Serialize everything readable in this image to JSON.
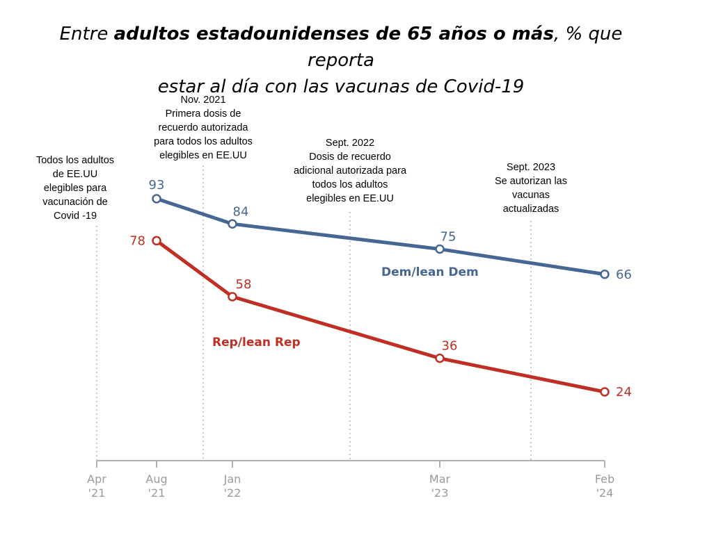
{
  "title": {
    "pre": "Entre ",
    "bold": "adultos estadounidenses de 65 años o más",
    "post": ", % que reporta",
    "line2": "estar al día con las vacunas de Covid-19"
  },
  "colors": {
    "dem": "#466694",
    "rep": "#bf2f24",
    "axis": "#b0b0b0",
    "event_line": "#b8b8b8"
  },
  "chart_data": {
    "type": "line",
    "x": [
      "Apr '21",
      "Aug '21",
      "Jan '22",
      "Mar '23",
      "Feb '24"
    ],
    "x_dates": [
      "2021-04",
      "2021-08",
      "2022-01",
      "2023-03",
      "2024-02"
    ],
    "ylim": [
      0,
      100
    ],
    "grid": false,
    "legend": "inline labels",
    "series": [
      {
        "name": "Dem/lean Dem",
        "color": "#466694",
        "points": [
          {
            "x": "2021-08",
            "y": 93
          },
          {
            "x": "2022-01",
            "y": 84
          },
          {
            "x": "2023-03",
            "y": 75
          },
          {
            "x": "2024-02",
            "y": 66
          }
        ]
      },
      {
        "name": "Rep/lean Rep",
        "color": "#bf2f24",
        "points": [
          {
            "x": "2021-08",
            "y": 78
          },
          {
            "x": "2022-01",
            "y": 58
          },
          {
            "x": "2023-03",
            "y": 36
          },
          {
            "x": "2024-02",
            "y": 24
          }
        ]
      }
    ],
    "x_ticks": [
      {
        "date": "2021-04",
        "line1": "Apr",
        "line2": "'21"
      },
      {
        "date": "2021-08",
        "line1": "Aug",
        "line2": "'21"
      },
      {
        "date": "2022-01",
        "line1": "Jan",
        "line2": "'22"
      },
      {
        "date": "2023-03",
        "line1": "Mar",
        "line2": "'23"
      },
      {
        "date": "2024-02",
        "line1": "Feb",
        "line2": "'24"
      }
    ],
    "annotations": [
      {
        "date": "2021-04",
        "lines": [
          "Todos los adultos",
          "de EE.UU",
          "elegibles para",
          "vacunación de",
          "Covid -19"
        ]
      },
      {
        "date": "2021-11",
        "lines": [
          "Nov. 2021",
          "Primera dosis de",
          "recuerdo autorizada",
          "para todos los adultos",
          "elegibles en EE.UU"
        ]
      },
      {
        "date": "2022-09",
        "lines": [
          "Sept. 2022",
          "Dosis de recuerdo",
          "adicional autorizada para",
          "todos los adultos",
          "elegibles en EE.UU"
        ]
      },
      {
        "date": "2023-09",
        "lines": [
          "Sept. 2023",
          "Se autorizan las",
          "vacunas",
          "actualizadas"
        ]
      }
    ]
  }
}
